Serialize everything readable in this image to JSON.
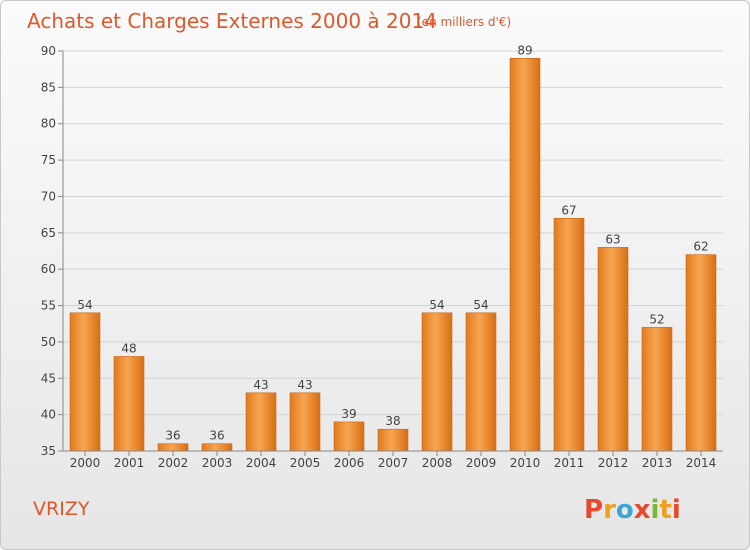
{
  "chart_data": {
    "type": "bar",
    "title": "Achats et Charges Externes 2000 à 2014",
    "subtitle": "(en milliers d'€)",
    "categories": [
      "2000",
      "2001",
      "2002",
      "2003",
      "2004",
      "2005",
      "2006",
      "2007",
      "2008",
      "2009",
      "2010",
      "2011",
      "2012",
      "2013",
      "2014"
    ],
    "values": [
      54,
      48,
      36,
      36,
      43,
      43,
      39,
      38,
      54,
      54,
      89,
      67,
      63,
      52,
      62
    ],
    "ylim": [
      35,
      90
    ],
    "yticks": [
      35,
      40,
      45,
      50,
      55,
      60,
      65,
      70,
      75,
      80,
      85,
      90
    ],
    "xlabel": "",
    "ylabel": "",
    "grid": true,
    "bar_color": "#f28c28"
  },
  "footer": {
    "commune": "VRIZY",
    "logo": {
      "letters": [
        "P",
        "r",
        "o",
        "x",
        "i",
        "t",
        "i"
      ],
      "colors": [
        "#e64a2e",
        "#f0a01e",
        "#3aa7d8",
        "#e64a2e",
        "#78b833",
        "#f0a01e",
        "#e64a2e"
      ]
    }
  }
}
